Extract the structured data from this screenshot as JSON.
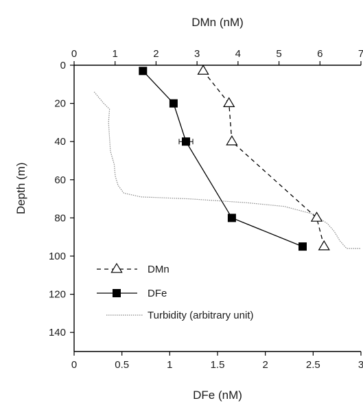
{
  "chart_data": {
    "type": "line",
    "top_axis": {
      "label": "DMn (nM)",
      "ticks": [
        0,
        1,
        2,
        3,
        4,
        5,
        6,
        7
      ],
      "tick_labels": [
        "0",
        "1",
        "2",
        "3",
        "4",
        "5",
        "6",
        "7"
      ],
      "range": [
        0,
        7
      ]
    },
    "bottom_axis": {
      "label": "DFe (nM)",
      "ticks": [
        0,
        0.5,
        1,
        1.5,
        2,
        2.5,
        3
      ],
      "tick_labels": [
        "0",
        "0.5",
        "1",
        "1.5",
        "2",
        "2.5",
        "3"
      ],
      "range": [
        0,
        3
      ]
    },
    "y_axis": {
      "label": "Depth (m)",
      "ticks": [
        0,
        20,
        40,
        60,
        80,
        100,
        120,
        140
      ],
      "tick_labels": [
        "0",
        "20",
        "40",
        "60",
        "80",
        "100",
        "120",
        "140"
      ],
      "range": [
        0,
        150
      ],
      "inverted": true
    },
    "grid": false,
    "legend_position": "bottom-left",
    "series": [
      {
        "name": "DMn",
        "axis": "top",
        "marker": "open-triangle",
        "line_style": "dashed",
        "color": "#000000",
        "points": [
          {
            "x": 3.15,
            "depth": 3
          },
          {
            "x": 3.78,
            "depth": 20
          },
          {
            "x": 3.85,
            "depth": 40
          },
          {
            "x": 5.92,
            "depth": 80
          },
          {
            "x": 6.1,
            "depth": 95
          }
        ]
      },
      {
        "name": "DFe",
        "axis": "bottom",
        "marker": "filled-square",
        "line_style": "solid",
        "color": "#000000",
        "points": [
          {
            "x": 0.72,
            "depth": 3
          },
          {
            "x": 1.04,
            "depth": 20
          },
          {
            "x": 1.17,
            "depth": 40
          },
          {
            "x": 1.65,
            "depth": 80
          },
          {
            "x": 2.39,
            "depth": 95
          }
        ]
      },
      {
        "name": "Turbidity (arbitrary unit)",
        "axis": "bottom",
        "marker": "none",
        "line_style": "dotted",
        "color": "#888888",
        "points": [
          {
            "x": 0.21,
            "depth": 14
          },
          {
            "x": 0.31,
            "depth": 20
          },
          {
            "x": 0.37,
            "depth": 23
          },
          {
            "x": 0.36,
            "depth": 30
          },
          {
            "x": 0.37,
            "depth": 38
          },
          {
            "x": 0.38,
            "depth": 45
          },
          {
            "x": 0.42,
            "depth": 52
          },
          {
            "x": 0.43,
            "depth": 58
          },
          {
            "x": 0.46,
            "depth": 63
          },
          {
            "x": 0.52,
            "depth": 67
          },
          {
            "x": 0.7,
            "depth": 69
          },
          {
            "x": 1.2,
            "depth": 70
          },
          {
            "x": 1.8,
            "depth": 72
          },
          {
            "x": 2.2,
            "depth": 74
          },
          {
            "x": 2.5,
            "depth": 78
          },
          {
            "x": 2.65,
            "depth": 83
          },
          {
            "x": 2.72,
            "depth": 87
          },
          {
            "x": 2.78,
            "depth": 92
          },
          {
            "x": 2.85,
            "depth": 96
          },
          {
            "x": 3.0,
            "depth": 96
          }
        ]
      }
    ]
  }
}
